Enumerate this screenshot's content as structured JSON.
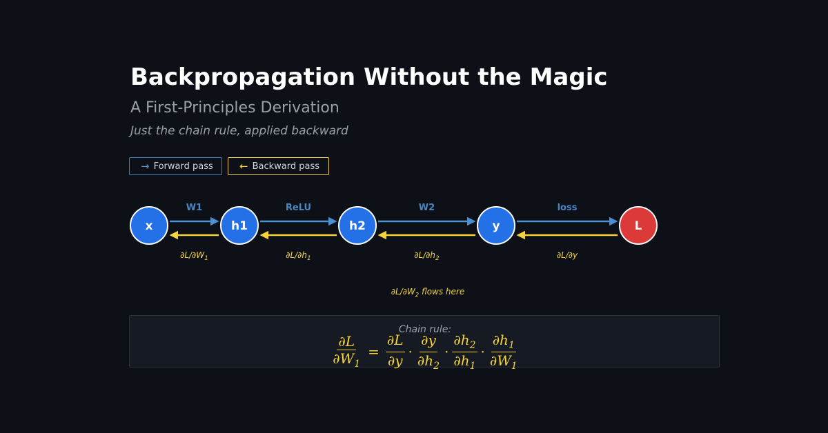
{
  "header": {
    "title": "Backpropagation Without the Magic",
    "subtitle": "A First-Principles Derivation",
    "tagline": "Just the chain rule, applied backward"
  },
  "legend": {
    "forward": {
      "arrow": "→",
      "label": "Forward pass"
    },
    "backward": {
      "arrow": "←",
      "label": "Backward pass"
    }
  },
  "graph": {
    "nodes": [
      {
        "label": "x",
        "kind": "input"
      },
      {
        "label": "h1",
        "kind": "hidden"
      },
      {
        "label": "h2",
        "kind": "hidden"
      },
      {
        "label": "y",
        "kind": "output"
      },
      {
        "label": "L",
        "kind": "loss"
      }
    ],
    "edges": [
      {
        "forward_label": "W1",
        "backward_label": "∂L/∂W",
        "backward_sub": "1"
      },
      {
        "forward_label": "ReLU",
        "backward_label": "∂L/∂h",
        "backward_sub": "1"
      },
      {
        "forward_label": "W2",
        "backward_label": "∂L/∂h",
        "backward_sub": "2"
      },
      {
        "forward_label": "loss",
        "backward_label": "∂L/∂y",
        "backward_sub": ""
      }
    ],
    "flow_note": {
      "prefix": "∂L/∂W",
      "sub": "2",
      "suffix": " flows here"
    }
  },
  "chain_rule": {
    "label": "Chain rule:",
    "lhs": {
      "num": "∂L",
      "den": "∂W",
      "den_sub": "1"
    },
    "equals": "=",
    "terms": [
      {
        "num": "∂L",
        "num_sub": "",
        "den": "∂y",
        "den_sub": ""
      },
      {
        "num": "∂y",
        "num_sub": "",
        "den": "∂h",
        "den_sub": "2"
      },
      {
        "num": "∂h",
        "num_sub": "2",
        "den": "∂h",
        "den_sub": "1"
      },
      {
        "num": "∂h",
        "num_sub": "1",
        "den": "∂W",
        "den_sub": "1"
      }
    ],
    "dot": "·"
  },
  "colors": {
    "background": "#0d1017",
    "node_blue": "#2470e6",
    "node_red": "#dc3a38",
    "node_stroke": "#ffffff",
    "forward_arrow": "#4a8fd0",
    "forward_label": "#4a86c0",
    "backward_arrow": "#f5d33c",
    "backward_label": "#f5d33c"
  }
}
